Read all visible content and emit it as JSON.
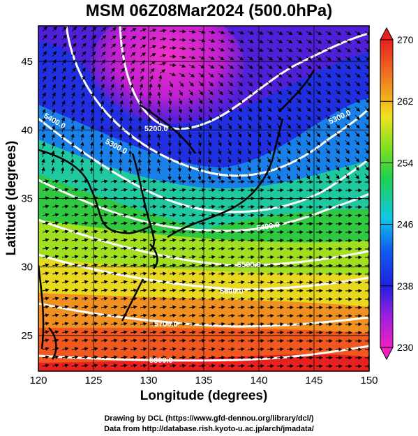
{
  "title": "MSM 06Z08Mar2024 (500.0hPa)",
  "xlabel": "Longitude (degrees)",
  "ylabel": "Latitude  (degrees)",
  "credit_line1": "Drawing by DCL (https://www.gfd-dennou.org/library/dcl/)",
  "credit_line2": "Data from http://database.rish.kyoto-u.ac.jp/arch/jmadata/",
  "map": {
    "lon_range": [
      120,
      150
    ],
    "lat_range": [
      22.4,
      47.6
    ],
    "lon_ticks": [
      "120",
      "125",
      "130",
      "135",
      "140",
      "145",
      "150"
    ],
    "lat_ticks": [
      "25",
      "30",
      "35",
      "40",
      "45"
    ],
    "lon_tick_values": [
      120,
      125,
      130,
      135,
      140,
      145,
      150
    ],
    "lat_tick_values": [
      25,
      30,
      35,
      40,
      45
    ],
    "colorbar": {
      "min": 230,
      "max": 270,
      "tick_labels": [
        "270",
        "262",
        "254",
        "246",
        "238",
        "230"
      ],
      "tick_values": [
        270,
        262,
        254,
        246,
        238,
        230
      ]
    },
    "contours": [
      {
        "label": "5200.0"
      },
      {
        "label": "5300.0"
      },
      {
        "label": "5400.0"
      },
      {
        "label": "5400.0"
      },
      {
        "label": "5500.0"
      },
      {
        "label": "5600.0"
      },
      {
        "label": "5700.0"
      },
      {
        "label": "5800.0"
      }
    ],
    "colors": {
      "magenta": "#e020c0",
      "purple": "#8a1ad8",
      "blue": "#2030e0",
      "cyan": "#10c0d8",
      "green": "#20c840",
      "yellow": "#e8e020",
      "orange": "#f08020",
      "red": "#e82020"
    }
  }
}
